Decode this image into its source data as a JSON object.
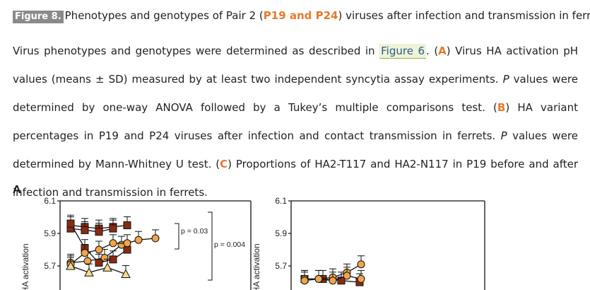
{
  "caption": {
    "figure_label": "Figure 8.",
    "title_before": "Phenotypes and genotypes of Pair 2 (",
    "title_highlight": "P19 and P24",
    "title_after": ") viruses after infection and transmission in ferrets.",
    "p1": "Virus phenotypes and genotypes were determined as described in",
    "figure_link": "Figure 6",
    "p2": ". (",
    "A": "A",
    "p3": ") Virus HA activation pH values (means ± SD) measured by at least two independent syncytia assay experiments. ",
    "P1": "P",
    "p4": " values were determined by one-way ANOVA followed by a Tukey’s multiple comparisons test. (",
    "B": "B",
    "p5": ") HA variant percentages in P19 and P24 viruses after infection and contact transmission in ferrets. ",
    "P2": "P",
    "p6": " values were determined by Mann-Whitney U test. (",
    "C": "C",
    "p7": ") Proportions of HA2-T117 and HA2-N117 in P19 before and after infection and transmission in ferrets."
  },
  "panel_letter": "A",
  "colors": {
    "dark_marker": "#8b2a12",
    "orange_marker": "#f0a54a",
    "light_marker": "#f7dc8e",
    "accent_text": "#e8782a"
  },
  "chart_data": [
    {
      "type": "line",
      "ylabel": "of HA activation",
      "yticks": [
        "6.1",
        "5.9",
        "5.7"
      ],
      "ylim": [
        5.6,
        6.1
      ],
      "annotations": [
        "p = 0.03",
        "p = 0.004"
      ],
      "series": [
        {
          "marker": "square-dark",
          "values": [
            5.95,
            5.94,
            5.93,
            5.94,
            5.95
          ]
        },
        {
          "marker": "square-dark",
          "values": [
            5.93,
            5.92,
            5.91,
            5.93
          ]
        },
        {
          "marker": "square-dark",
          "values": [
            5.96,
            5.81,
            5.72,
            5.74,
            5.8
          ]
        },
        {
          "marker": "circle-orange",
          "values": [
            5.72,
            5.73,
            5.75,
            5.83,
            5.86,
            5.87
          ]
        },
        {
          "marker": "circle-orange",
          "values": [
            5.71,
            5.78,
            5.8,
            5.84,
            5.84
          ]
        },
        {
          "marker": "triangle-light",
          "values": [
            5.7,
            5.66,
            5.69,
            5.65
          ]
        }
      ]
    },
    {
      "type": "line",
      "ylabel": "of HA activation",
      "yticks": [
        "6.1",
        "5.9",
        "5.7"
      ],
      "ylim": [
        5.6,
        6.1
      ],
      "series": [
        {
          "marker": "square-dark",
          "values": [
            5.62,
            5.62,
            5.61,
            5.6
          ]
        },
        {
          "marker": "circle-orange",
          "values": [
            5.62,
            5.62,
            5.63,
            5.66,
            5.71
          ]
        },
        {
          "marker": "circle-orange",
          "values": [
            5.61,
            5.62,
            5.61,
            5.64,
            5.62
          ]
        }
      ]
    }
  ]
}
